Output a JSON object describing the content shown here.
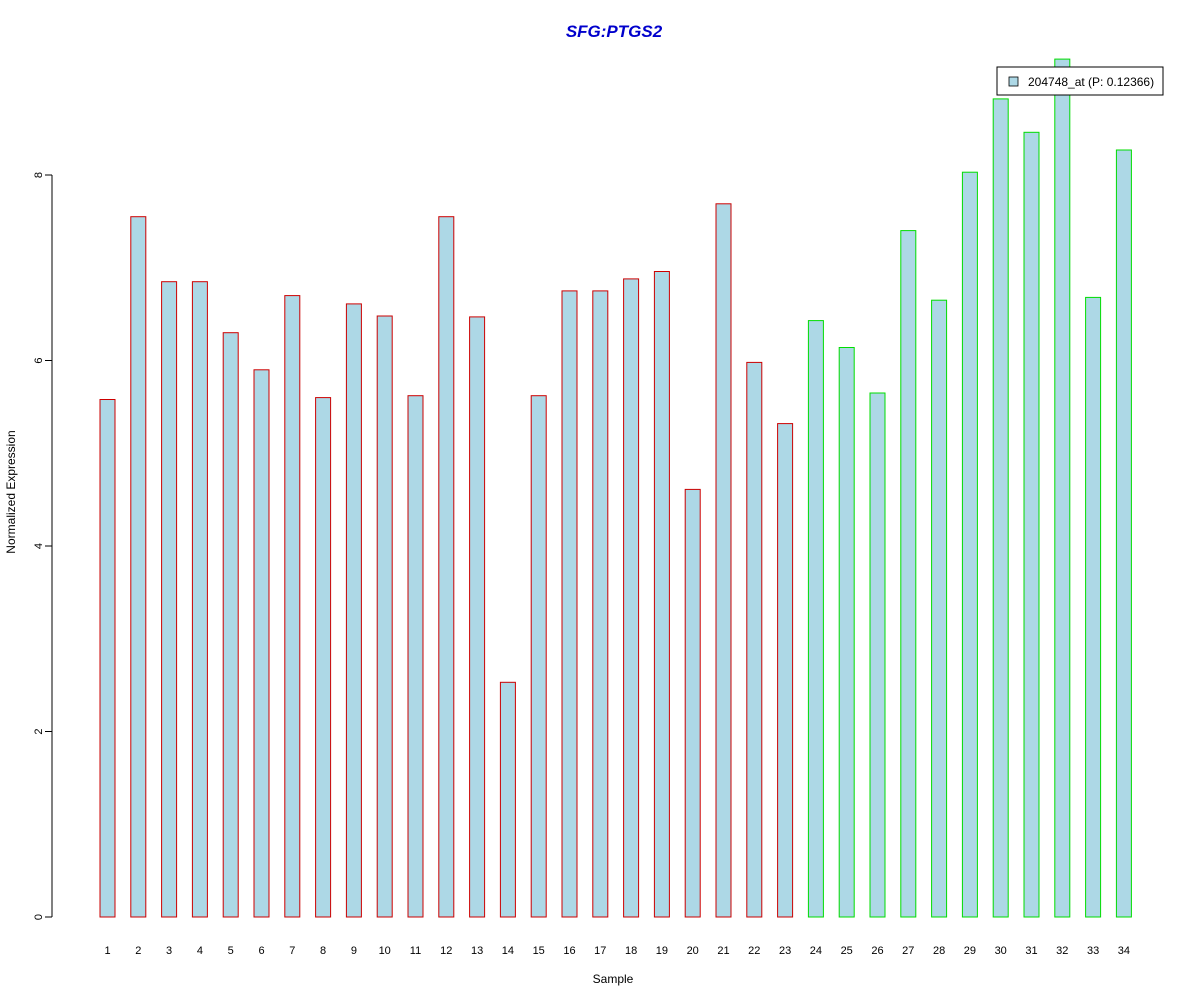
{
  "chart_data": {
    "type": "bar",
    "title": "SFG:PTGS2",
    "xlabel": "Sample",
    "ylabel": "Normalized Expression",
    "ylim": [
      0,
      9.3
    ],
    "yticks": [
      0,
      2,
      4,
      6,
      8
    ],
    "grid": false,
    "legend": {
      "placement": "top-right",
      "entries": [
        {
          "label": "204748_at (P: 0.12366)",
          "color": "#add8e6"
        }
      ]
    },
    "bar_fill": "#add8e6",
    "categories": [
      "1",
      "2",
      "3",
      "4",
      "5",
      "6",
      "7",
      "8",
      "9",
      "10",
      "11",
      "12",
      "13",
      "14",
      "15",
      "16",
      "17",
      "18",
      "19",
      "20",
      "21",
      "22",
      "23",
      "24",
      "25",
      "26",
      "27",
      "28",
      "29",
      "30",
      "31",
      "32",
      "33",
      "34"
    ],
    "values": [
      5.58,
      7.55,
      6.85,
      6.85,
      6.3,
      5.9,
      6.7,
      5.6,
      6.61,
      6.48,
      5.62,
      7.55,
      6.47,
      2.53,
      5.62,
      6.75,
      6.75,
      6.88,
      6.96,
      4.61,
      7.69,
      5.98,
      5.32,
      6.43,
      6.14,
      5.65,
      7.4,
      6.65,
      8.03,
      8.82,
      8.46,
      9.25,
      6.68,
      8.27
    ],
    "groups": [
      {
        "from": 1,
        "to": 23,
        "border_color": "#cc0000"
      },
      {
        "from": 24,
        "to": 34,
        "border_color": "#00dd00"
      }
    ]
  }
}
